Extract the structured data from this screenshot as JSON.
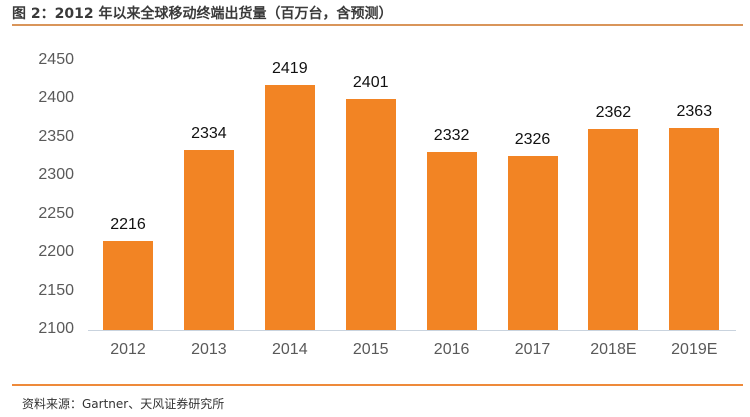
{
  "title": "图 2：2012 年以来全球移动终端出货量（百万台，含预测）",
  "source": "资料来源：Gartner、天风证券研究所",
  "colors": {
    "bar": "#f28424",
    "rule_top": "#d9955a",
    "rule_bottom": "#ee8a3a",
    "axis": "#c9d3de"
  },
  "chart_data": {
    "type": "bar",
    "title": "图 2：2012 年以来全球移动终端出货量（百万台，含预测）",
    "xlabel": "",
    "ylabel": "",
    "unit": "百万台",
    "categories": [
      "2012",
      "2013",
      "2014",
      "2015",
      "2016",
      "2017",
      "2018E",
      "2019E"
    ],
    "values": [
      2216,
      2334,
      2419,
      2401,
      2332,
      2326,
      2362,
      2363
    ],
    "ylim": [
      2100,
      2450
    ],
    "yticks": [
      "2100",
      "2150",
      "2200",
      "2250",
      "2300",
      "2350",
      "2400",
      "2450"
    ],
    "grid": false,
    "legend": null,
    "data_labels": true
  }
}
